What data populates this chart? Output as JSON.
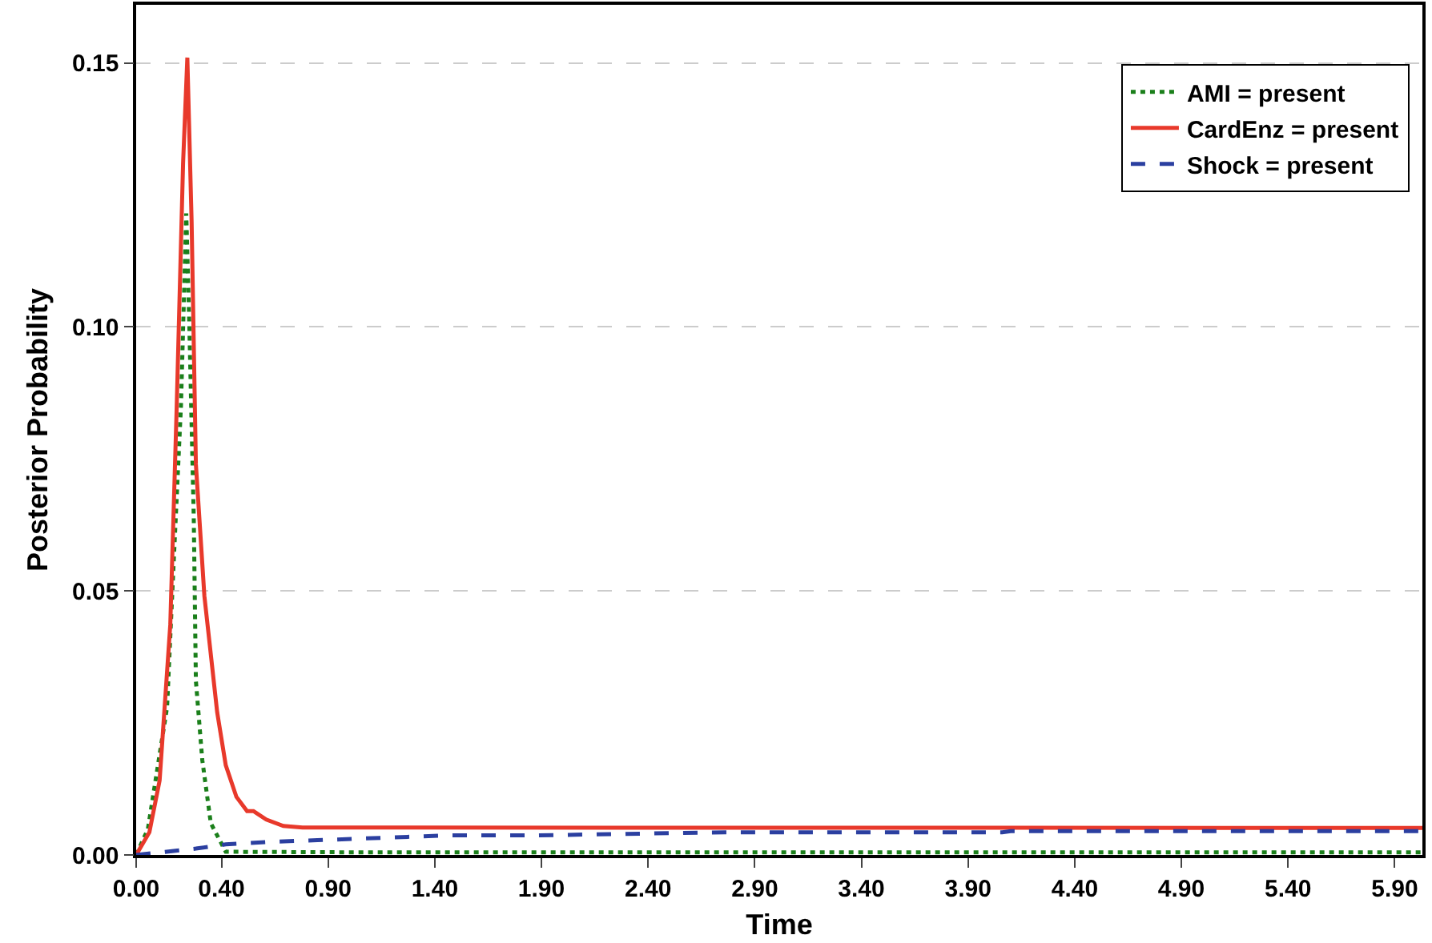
{
  "chart_data": {
    "type": "line",
    "xlabel": "Time",
    "ylabel": "Posterior Probability",
    "xlim": [
      0,
      6.03
    ],
    "ylim": [
      0,
      0.161
    ],
    "xticks": [
      {
        "value": 0,
        "label": "0.00"
      },
      {
        "value": 0.4,
        "label": "0.40"
      },
      {
        "value": 0.9,
        "label": "0.90"
      },
      {
        "value": 1.4,
        "label": "1.40"
      },
      {
        "value": 1.9,
        "label": "1.90"
      },
      {
        "value": 2.4,
        "label": "2.40"
      },
      {
        "value": 2.9,
        "label": "2.90"
      },
      {
        "value": 3.4,
        "label": "3.40"
      },
      {
        "value": 3.9,
        "label": "3.90"
      },
      {
        "value": 4.4,
        "label": "4.40"
      },
      {
        "value": 4.9,
        "label": "4.90"
      },
      {
        "value": 5.4,
        "label": "5.40"
      },
      {
        "value": 5.9,
        "label": "5.90"
      }
    ],
    "yticks": [
      {
        "value": 0,
        "label": "0.00"
      },
      {
        "value": 0.05,
        "label": "0.05"
      },
      {
        "value": 0.1,
        "label": "0.10"
      },
      {
        "value": 0.15,
        "label": "0.15"
      }
    ],
    "grid": "y",
    "legend": "top right",
    "marker": "none",
    "series": [
      {
        "name": "AMI = present",
        "color": "#1a7f1a",
        "line_style": "dotted",
        "x": [
          0,
          0.055,
          0.145,
          0.18,
          0.21,
          0.235,
          0.25,
          0.27,
          0.28,
          0.31,
          0.35,
          0.42,
          1.0,
          6.03
        ],
        "values": [
          0,
          0.0049,
          0.028,
          0.059,
          0.085,
          0.1215,
          0.099,
          0.064,
          0.033,
          0.018,
          0.006,
          0.0006,
          0.0005,
          0.0005
        ]
      },
      {
        "name": "CardEnz = present",
        "color": "#e8392b",
        "line_style": "solid",
        "x": [
          0,
          0.062,
          0.11,
          0.16,
          0.19,
          0.22,
          0.24,
          0.26,
          0.28,
          0.32,
          0.38,
          0.42,
          0.47,
          0.52,
          0.55,
          0.61,
          0.69,
          0.78,
          6.03
        ],
        "values": [
          0,
          0.0043,
          0.0141,
          0.0436,
          0.0847,
          0.131,
          0.151,
          0.12,
          0.074,
          0.049,
          0.027,
          0.017,
          0.011,
          0.0083,
          0.0083,
          0.0067,
          0.0055,
          0.0052,
          0.0051
        ]
      },
      {
        "name": "Shock = present",
        "color": "#2b3fa0",
        "line_style": "dashed",
        "x": [
          0,
          0.28,
          0.42,
          0.64,
          0.85,
          1.46,
          1.86,
          2.76,
          4.06,
          4.1,
          6.03
        ],
        "values": [
          0,
          0.0012,
          0.002,
          0.0025,
          0.0028,
          0.0037,
          0.0037,
          0.0043,
          0.0043,
          0.0045,
          0.0045
        ]
      }
    ]
  }
}
